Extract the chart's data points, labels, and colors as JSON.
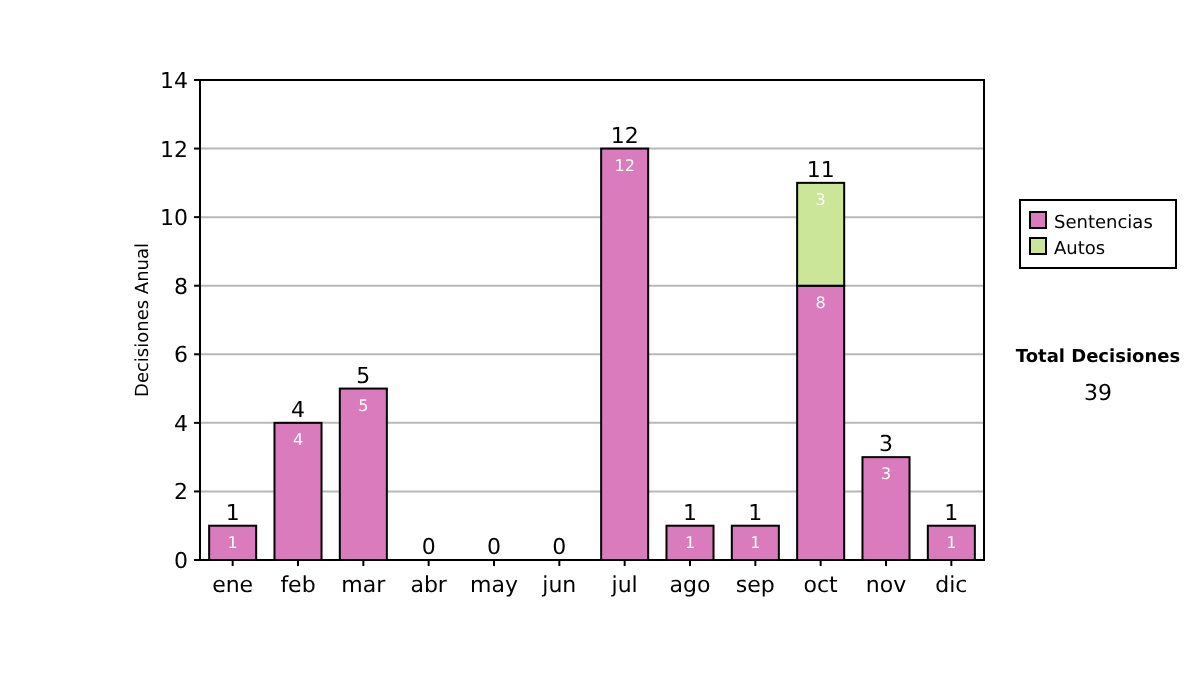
{
  "chart_data": {
    "type": "bar",
    "stacked": true,
    "ylabel": "Decisiones Anual",
    "categories": [
      "ene",
      "feb",
      "mar",
      "abr",
      "may",
      "jun",
      "jul",
      "ago",
      "sep",
      "oct",
      "nov",
      "dic"
    ],
    "series": [
      {
        "name": "Sentencias",
        "color": "#d97bbd",
        "values": [
          1,
          4,
          5,
          0,
          0,
          0,
          12,
          1,
          1,
          8,
          3,
          1
        ],
        "value_labels": [
          "1",
          "4",
          "5",
          null,
          null,
          null,
          "12",
          "1",
          "1",
          "8",
          "3",
          "1"
        ]
      },
      {
        "name": "Autos",
        "color": "#cce699",
        "values": [
          0,
          0,
          0,
          0,
          0,
          0,
          0,
          0,
          0,
          3,
          0,
          0
        ],
        "value_labels": [
          null,
          null,
          null,
          null,
          null,
          null,
          null,
          null,
          null,
          "3",
          null,
          null
        ]
      }
    ],
    "totals": [
      "1",
      "4",
      "5",
      "0",
      "0",
      "0",
      "12",
      "1",
      "1",
      "11",
      "3",
      "1"
    ],
    "ylim": [
      0,
      14
    ],
    "yticks": [
      0,
      2,
      4,
      6,
      8,
      10,
      12,
      14
    ],
    "grid": "y",
    "legend": "right",
    "annotations": [
      "Total Decisiones",
      "39"
    ]
  }
}
